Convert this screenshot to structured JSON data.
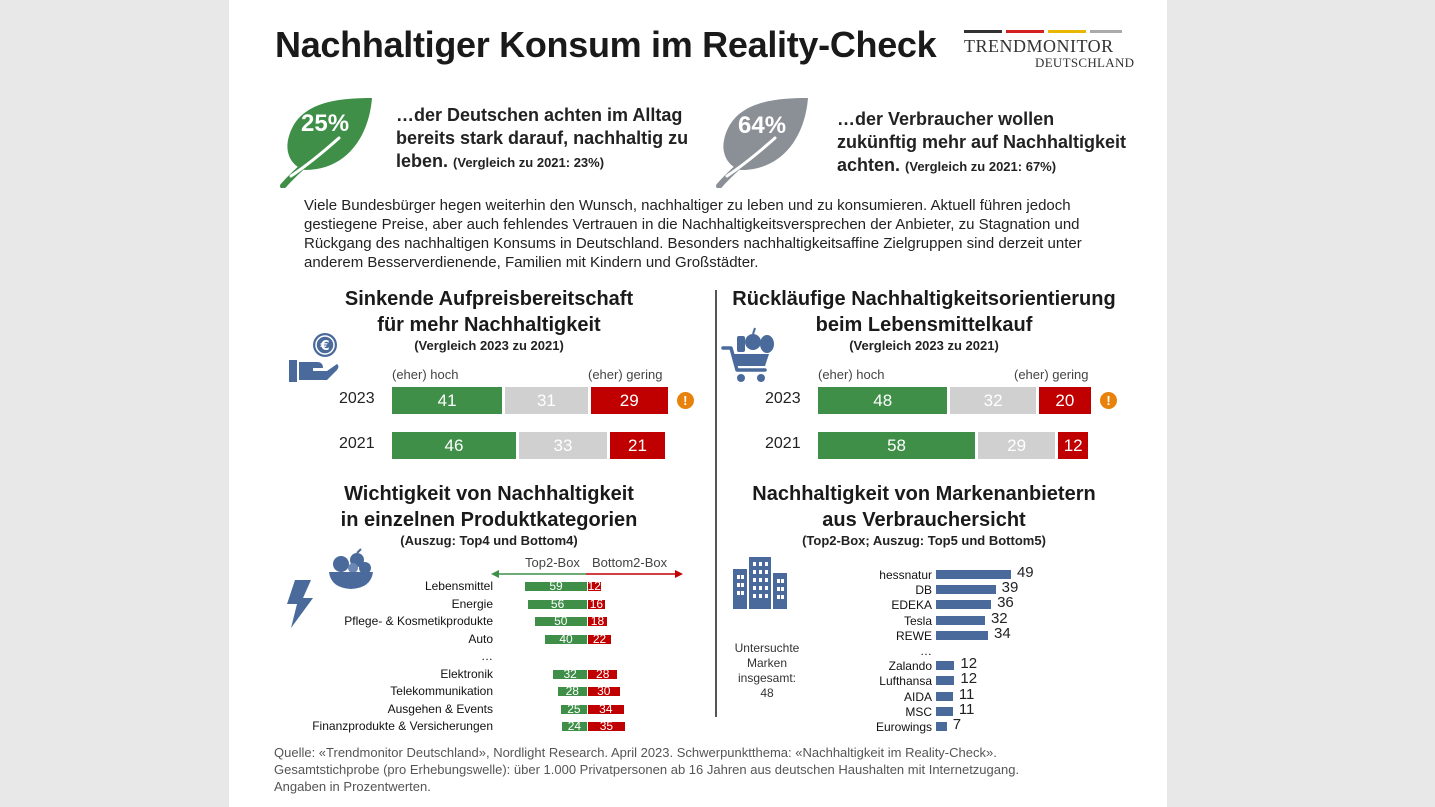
{
  "title": "Nachhaltiger Konsum im Reality-Check",
  "logo": {
    "line1": "TRENDMONITOR",
    "line2": "DEUTSCHLAND",
    "bar_colors": [
      "#333333",
      "#d42020",
      "#e8b800",
      "#aaaaaa"
    ]
  },
  "stat1": {
    "percent": "25%",
    "text_line1": "…der Deutschen achten im Alltag",
    "text_line2": "bereits stark darauf, nachhaltig zu",
    "text_line3": "leben.",
    "comparison": "(Vergleich zu 2021: 23%)",
    "leaf_color": "#3f8f48"
  },
  "stat2": {
    "percent": "64%",
    "text_line1": "…der Verbraucher wollen",
    "text_line2": "zukünftig mehr auf Nachhaltigkeit",
    "text_line3": "achten.",
    "comparison": "(Vergleich zu 2021: 67%)",
    "leaf_color": "#8a9096"
  },
  "paragraph": "Viele Bundesbürger hegen weiterhin den Wunsch, nachhaltiger zu leben und zu konsumieren. Aktuell führen jedoch gestiegene Preise, aber auch fehlendes Vertrauen in die Nachhaltigkeitsversprechen der Anbieter, zu Stagnation und Rückgang des nachhaltigen Konsums in Deutschland. Besonders nachhaltigkeitsaffine Zielgruppen sind derzeit unter anderem Besserverdienende, Familien mit Kindern und Großstädter.",
  "colors": {
    "green": "#3f8f48",
    "gray": "#d0d0d0",
    "red": "#c00000",
    "blue": "#4a6a9c",
    "warning": "#e8820c"
  },
  "chart_data": [
    {
      "type": "bar",
      "title": "Sinkende Aufpreisbereitschaft für mehr Nachhaltigkeit",
      "title_line1": "Sinkende Aufpreisbereitschaft",
      "title_line2": "für mehr Nachhaltigkeit",
      "subtitle": "(Vergleich 2023 zu 2021)",
      "label_high": "(eher) hoch",
      "label_low": "(eher) gering",
      "categories": [
        "2023",
        "2021"
      ],
      "series": [
        {
          "name": "(eher) hoch",
          "values": [
            41,
            46
          ]
        },
        {
          "name": "",
          "values": [
            31,
            33
          ]
        },
        {
          "name": "(eher) gering",
          "values": [
            29,
            21
          ]
        }
      ],
      "warning_icon": "exclamation-circle-icon"
    },
    {
      "type": "bar",
      "title": "Rückläufige Nachhaltigkeitsorientierung beim Lebensmittelkauf",
      "title_line1": "Rückläufige Nachhaltigkeitsorientierung",
      "title_line2": "beim Lebensmittelkauf",
      "subtitle": "(Vergleich 2023 zu 2021)",
      "label_high": "(eher) hoch",
      "label_low": "(eher) gering",
      "categories": [
        "2023",
        "2021"
      ],
      "series": [
        {
          "name": "(eher) hoch",
          "values": [
            48,
            58
          ]
        },
        {
          "name": "",
          "values": [
            32,
            29
          ]
        },
        {
          "name": "(eher) gering",
          "values": [
            20,
            12
          ]
        }
      ],
      "warning_icon": "exclamation-circle-icon"
    },
    {
      "type": "bar",
      "title": "Wichtigkeit von Nachhaltigkeit in einzelnen Produktkategorien",
      "title_line1": "Wichtigkeit von Nachhaltigkeit",
      "title_line2": "in einzelnen Produktkategorien",
      "subtitle": "(Auszug: Top4 und Bottom4)",
      "legend_top": "Top2-Box",
      "legend_bottom": "Bottom2-Box",
      "categories": [
        "Lebensmittel",
        "Energie",
        "Pflege- & Kosmetikprodukte",
        "Auto",
        "…",
        "Elektronik",
        "Telekommunikation",
        "Ausgehen & Events",
        "Finanzprodukte & Versicherungen"
      ],
      "series": [
        {
          "name": "Top2-Box",
          "values": [
            59,
            56,
            50,
            40,
            null,
            32,
            28,
            25,
            24
          ]
        },
        {
          "name": "Bottom2-Box",
          "values": [
            12,
            16,
            18,
            22,
            null,
            28,
            30,
            34,
            35
          ]
        }
      ]
    },
    {
      "type": "bar",
      "title": "Nachhaltigkeit von Markenanbietern aus Verbrauchersicht",
      "title_line1": "Nachhaltigkeit von Markenanbietern",
      "title_line2": "aus Verbrauchersicht",
      "subtitle": "(Top2-Box; Auszug: Top5 und Bottom5)",
      "note_lines": [
        "Untersuchte",
        "Marken",
        "insgesamt:",
        "48"
      ],
      "categories": [
        "hessnatur",
        "DB",
        "EDEKA",
        "Tesla",
        "REWE",
        "…",
        "Zalando",
        "Lufthansa",
        "AIDA",
        "MSC",
        "Eurowings"
      ],
      "values": [
        49,
        39,
        36,
        32,
        34,
        null,
        12,
        12,
        11,
        11,
        7
      ]
    }
  ],
  "source_line1": "Quelle: «Trendmonitor Deutschland», Nordlight Research. April 2023. Schwerpunktthema: «Nachhaltigkeit im Reality-Check».",
  "source_line2": "Gesamtstichprobe (pro Erhebungswelle): über 1.000 Privatpersonen ab 16 Jahren aus deutschen Haushalten mit Internetzugang.",
  "source_line3": "Angaben in Prozentwerten."
}
